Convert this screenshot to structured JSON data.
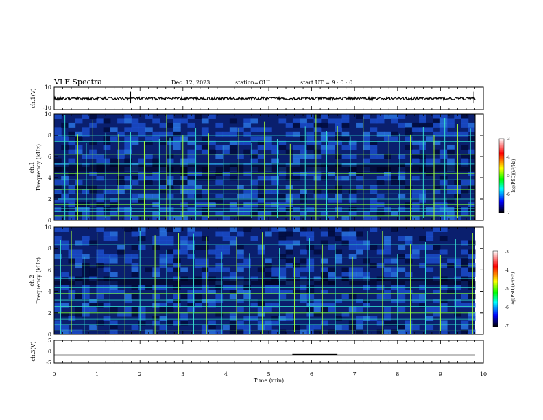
{
  "header": {
    "title": "VLF Spectra",
    "date": "Dec. 12, 2023",
    "station": "station=OUI",
    "start": "start  UT =   9 : 0  : 0"
  },
  "panels": {
    "ch1_wave": {
      "ylabel": "ch.1(V)",
      "ticks": [
        "10",
        "-10"
      ]
    },
    "ch1_spec": {
      "ylabel_top": "ch.1",
      "ylabel": "Frequency (kHz)",
      "ticks": [
        "10",
        "8",
        "6",
        "4",
        "2",
        "0"
      ]
    },
    "ch2_spec": {
      "ylabel_top": "ch.2",
      "ylabel": "Frequency (kHz)",
      "ticks": [
        "10",
        "8",
        "6",
        "4",
        "2",
        "0"
      ]
    },
    "ch3_wave": {
      "ylabel": "ch.3(V)",
      "ticks": [
        "5",
        "0",
        "-5"
      ]
    }
  },
  "colorbar": {
    "label": "log(PSD)(V²/Hz)",
    "ticks": [
      "-3",
      "-4",
      "-5",
      "-6",
      "-7"
    ],
    "colors": [
      "#ffffff",
      "#ff0000",
      "#ffff00",
      "#00ff00",
      "#00ffff",
      "#0000ff",
      "#000000"
    ]
  },
  "xaxis": {
    "label": "Time (min)",
    "ticks": [
      "0",
      "1",
      "2",
      "3",
      "4",
      "5",
      "6",
      "7",
      "8",
      "9",
      "10"
    ]
  },
  "chart_data": [
    {
      "type": "line",
      "name": "ch.1 waveform",
      "xlabel": "Time (min)",
      "ylabel": "ch.1(V)",
      "xlim": [
        0,
        10
      ],
      "ylim": [
        -10,
        10
      ],
      "baseline": 0,
      "spikes_x": [
        1.78,
        9.78
      ]
    },
    {
      "type": "heatmap",
      "name": "ch.1 spectrogram",
      "xlabel": "Time (min)",
      "ylabel": "Frequency (kHz)",
      "xlim": [
        0,
        10
      ],
      "ylim": [
        0,
        10
      ],
      "zlim": [
        -7,
        -3
      ],
      "zlabel": "log(PSD)(V²/Hz)",
      "line_freqs_khz": [
        0.4,
        0.8,
        1.1,
        1.5,
        2.0,
        2.5,
        2.9,
        3.3,
        3.8,
        4.4,
        5.0,
        5.3,
        6.2,
        7.4,
        8.0
      ],
      "impulse_times_min": [
        0.25,
        0.55,
        0.75,
        0.9,
        1.2,
        1.5,
        1.78,
        2.1,
        2.45,
        2.62,
        2.7,
        3.0,
        3.3,
        3.6,
        3.95,
        4.3,
        4.6,
        4.9,
        5.2,
        5.5,
        5.85,
        6.1,
        6.35,
        6.6,
        6.9,
        7.2,
        7.5,
        7.8,
        8.05,
        8.3,
        8.6,
        8.85,
        9.1,
        9.4,
        9.7
      ]
    },
    {
      "type": "heatmap",
      "name": "ch.2 spectrogram",
      "xlabel": "Time (min)",
      "ylabel": "Frequency (kHz)",
      "xlim": [
        0,
        10
      ],
      "ylim": [
        0,
        10
      ],
      "zlim": [
        -7,
        -3
      ],
      "zlabel": "log(PSD)(V²/Hz)",
      "line_freqs_khz": [
        0.3,
        0.9,
        1.4,
        2.0,
        2.6,
        3.2,
        3.8,
        4.4,
        5.2,
        6.4,
        7.2,
        8.4
      ],
      "impulse_times_min": [
        0.15,
        0.4,
        0.7,
        1.0,
        1.3,
        1.65,
        2.0,
        2.35,
        2.62,
        2.9,
        3.25,
        3.55,
        3.9,
        4.25,
        4.55,
        4.85,
        5.25,
        5.6,
        5.95,
        6.25,
        6.55,
        6.95,
        7.3,
        7.65,
        8.0,
        8.3,
        8.65,
        9.0,
        9.35,
        9.75
      ]
    },
    {
      "type": "line",
      "name": "ch.3 waveform",
      "xlabel": "Time (min)",
      "ylabel": "ch.3(V)",
      "xlim": [
        0,
        10
      ],
      "ylim": [
        -5,
        5
      ],
      "baseline": -1.5,
      "pulse_x": [
        5.55,
        6.6
      ],
      "pulse_y": -1.0
    }
  ]
}
